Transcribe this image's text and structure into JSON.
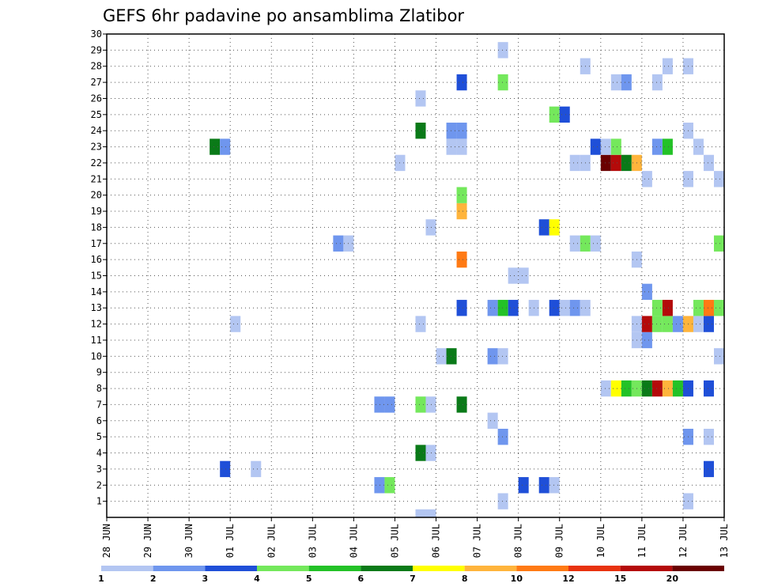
{
  "chart_data": {
    "type": "heatmap",
    "title": "GEFS 6hr padavine po ansamblima Zlatibor",
    "x_tick_labels": [
      "28 JUN",
      "29 JUN",
      "30 JUN",
      "01 JUL",
      "02 JUL",
      "03 JUL",
      "04 JUL",
      "05 JUL",
      "06 JUL",
      "07 JUL",
      "08 JUL",
      "09 JUL",
      "10 JUL",
      "11 JUL",
      "12 JUL",
      "13 JUL"
    ],
    "y_tick_labels": [
      "1",
      "2",
      "3",
      "4",
      "5",
      "6",
      "7",
      "8",
      "9",
      "10",
      "11",
      "12",
      "13",
      "14",
      "15",
      "16",
      "17",
      "18",
      "19",
      "20",
      "21",
      "22",
      "23",
      "24",
      "25",
      "26",
      "27",
      "28",
      "29",
      "30"
    ],
    "xlim": [
      0,
      60
    ],
    "ylim": [
      0,
      30
    ],
    "grid": true,
    "colorbar": {
      "labels": [
        "1",
        "2",
        "3",
        "4",
        "5",
        "6",
        "7",
        "8",
        "10",
        "12",
        "15",
        "20"
      ],
      "colors": [
        "#b3c6f2",
        "#6f96ee",
        "#1f4fd8",
        "#74e85c",
        "#23c227",
        "#0a7a18",
        "#ffff00",
        "#ffb43c",
        "#ff7a14",
        "#e8320f",
        "#b40a0a",
        "#6a0000"
      ]
    },
    "cells": [
      {
        "t": 56.5,
        "m": 1,
        "v": 1
      },
      {
        "t": 38.5,
        "m": 1,
        "v": 1
      },
      {
        "t": 40.5,
        "m": 2,
        "v": 3
      },
      {
        "t": 42.5,
        "m": 2,
        "v": 3
      },
      {
        "t": 43.5,
        "m": 2,
        "v": 1
      },
      {
        "t": 26.5,
        "m": 2,
        "v": 2
      },
      {
        "t": 27.5,
        "m": 2,
        "v": 4
      },
      {
        "t": 11.5,
        "m": 3,
        "v": 3
      },
      {
        "t": 14.5,
        "m": 3,
        "v": 1
      },
      {
        "t": 58.5,
        "m": 3,
        "v": 3
      },
      {
        "t": 30.5,
        "m": 4,
        "v": 6
      },
      {
        "t": 31.5,
        "m": 4,
        "v": 1
      },
      {
        "t": 38.5,
        "m": 5,
        "v": 2
      },
      {
        "t": 56.5,
        "m": 5,
        "v": 2
      },
      {
        "t": 58.5,
        "m": 5,
        "v": 1
      },
      {
        "t": 37.5,
        "m": 6,
        "v": 1
      },
      {
        "t": 26.5,
        "m": 7,
        "v": 2
      },
      {
        "t": 27.5,
        "m": 7,
        "v": 2
      },
      {
        "t": 30.5,
        "m": 7,
        "v": 4
      },
      {
        "t": 31.5,
        "m": 7,
        "v": 1
      },
      {
        "t": 34.5,
        "m": 7,
        "v": 6
      },
      {
        "t": 48.5,
        "m": 8,
        "v": 1
      },
      {
        "t": 49.5,
        "m": 8,
        "v": 7
      },
      {
        "t": 50.5,
        "m": 8,
        "v": 5
      },
      {
        "t": 51.5,
        "m": 8,
        "v": 4
      },
      {
        "t": 52.5,
        "m": 8,
        "v": 6
      },
      {
        "t": 53.5,
        "m": 8,
        "v": 11
      },
      {
        "t": 54.5,
        "m": 8,
        "v": 8
      },
      {
        "t": 55.5,
        "m": 8,
        "v": 5
      },
      {
        "t": 56.5,
        "m": 8,
        "v": 3
      },
      {
        "t": 58.5,
        "m": 8,
        "v": 3
      },
      {
        "t": 32.5,
        "m": 10,
        "v": 1
      },
      {
        "t": 33.5,
        "m": 10,
        "v": 6
      },
      {
        "t": 37.5,
        "m": 10,
        "v": 2
      },
      {
        "t": 38.5,
        "m": 10,
        "v": 1
      },
      {
        "t": 59.5,
        "m": 10,
        "v": 1
      },
      {
        "t": 51.5,
        "m": 11,
        "v": 1
      },
      {
        "t": 52.5,
        "m": 11,
        "v": 2
      },
      {
        "t": 12.5,
        "m": 12,
        "v": 1
      },
      {
        "t": 30.5,
        "m": 12,
        "v": 1
      },
      {
        "t": 51.5,
        "m": 12,
        "v": 1
      },
      {
        "t": 52.5,
        "m": 12,
        "v": 11
      },
      {
        "t": 53.5,
        "m": 12,
        "v": 4
      },
      {
        "t": 54.5,
        "m": 12,
        "v": 4
      },
      {
        "t": 55.5,
        "m": 12,
        "v": 2
      },
      {
        "t": 56.5,
        "m": 12,
        "v": 8
      },
      {
        "t": 57.5,
        "m": 12,
        "v": 1
      },
      {
        "t": 58.5,
        "m": 12,
        "v": 3
      },
      {
        "t": 34.5,
        "m": 13,
        "v": 3
      },
      {
        "t": 37.5,
        "m": 13,
        "v": 2
      },
      {
        "t": 38.5,
        "m": 13,
        "v": 5
      },
      {
        "t": 39.5,
        "m": 13,
        "v": 3
      },
      {
        "t": 41.5,
        "m": 13,
        "v": 1
      },
      {
        "t": 43.5,
        "m": 13,
        "v": 3
      },
      {
        "t": 44.5,
        "m": 13,
        "v": 1
      },
      {
        "t": 45.5,
        "m": 13,
        "v": 2
      },
      {
        "t": 46.5,
        "m": 13,
        "v": 1
      },
      {
        "t": 53.5,
        "m": 13,
        "v": 4
      },
      {
        "t": 54.5,
        "m": 13,
        "v": 11
      },
      {
        "t": 57.5,
        "m": 13,
        "v": 4
      },
      {
        "t": 58.5,
        "m": 13,
        "v": 9
      },
      {
        "t": 59.5,
        "m": 13,
        "v": 4
      },
      {
        "t": 52.5,
        "m": 14,
        "v": 2
      },
      {
        "t": 39.5,
        "m": 15,
        "v": 1
      },
      {
        "t": 40.5,
        "m": 15,
        "v": 1
      },
      {
        "t": 34.5,
        "m": 16,
        "v": 9
      },
      {
        "t": 51.5,
        "m": 16,
        "v": 1
      },
      {
        "t": 22.5,
        "m": 17,
        "v": 2
      },
      {
        "t": 23.5,
        "m": 17,
        "v": 1
      },
      {
        "t": 45.5,
        "m": 17,
        "v": 1
      },
      {
        "t": 46.5,
        "m": 17,
        "v": 4
      },
      {
        "t": 47.5,
        "m": 17,
        "v": 1
      },
      {
        "t": 59.5,
        "m": 17,
        "v": 4
      },
      {
        "t": 31.5,
        "m": 18,
        "v": 1
      },
      {
        "t": 42.5,
        "m": 18,
        "v": 3
      },
      {
        "t": 43.5,
        "m": 18,
        "v": 7
      },
      {
        "t": 34.5,
        "m": 19,
        "v": 8
      },
      {
        "t": 34.5,
        "m": 20,
        "v": 4
      },
      {
        "t": 52.5,
        "m": 21,
        "v": 1
      },
      {
        "t": 56.5,
        "m": 21,
        "v": 1
      },
      {
        "t": 59.5,
        "m": 21,
        "v": 1
      },
      {
        "t": 28.5,
        "m": 22,
        "v": 1
      },
      {
        "t": 45.5,
        "m": 22,
        "v": 1
      },
      {
        "t": 46.5,
        "m": 22,
        "v": 1
      },
      {
        "t": 48.5,
        "m": 22,
        "v": 12
      },
      {
        "t": 49.5,
        "m": 22,
        "v": 11
      },
      {
        "t": 50.5,
        "m": 22,
        "v": 6
      },
      {
        "t": 51.5,
        "m": 22,
        "v": 8
      },
      {
        "t": 58.5,
        "m": 22,
        "v": 1
      },
      {
        "t": 10.5,
        "m": 23,
        "v": 6
      },
      {
        "t": 11.5,
        "m": 23,
        "v": 2
      },
      {
        "t": 33.5,
        "m": 23,
        "v": 1
      },
      {
        "t": 34.5,
        "m": 23,
        "v": 1
      },
      {
        "t": 47.5,
        "m": 23,
        "v": 3
      },
      {
        "t": 48.5,
        "m": 23,
        "v": 1
      },
      {
        "t": 49.5,
        "m": 23,
        "v": 4
      },
      {
        "t": 53.5,
        "m": 23,
        "v": 2
      },
      {
        "t": 54.5,
        "m": 23,
        "v": 5
      },
      {
        "t": 57.5,
        "m": 23,
        "v": 1
      },
      {
        "t": 30.5,
        "m": 24,
        "v": 6
      },
      {
        "t": 33.5,
        "m": 24,
        "v": 2
      },
      {
        "t": 34.5,
        "m": 24,
        "v": 2
      },
      {
        "t": 56.5,
        "m": 24,
        "v": 1
      },
      {
        "t": 43.5,
        "m": 25,
        "v": 4
      },
      {
        "t": 44.5,
        "m": 25,
        "v": 3
      },
      {
        "t": 30.5,
        "m": 26,
        "v": 1
      },
      {
        "t": 34.5,
        "m": 27,
        "v": 3
      },
      {
        "t": 38.5,
        "m": 27,
        "v": 4
      },
      {
        "t": 49.5,
        "m": 27,
        "v": 1
      },
      {
        "t": 50.5,
        "m": 27,
        "v": 2
      },
      {
        "t": 53.5,
        "m": 27,
        "v": 1
      },
      {
        "t": 46.5,
        "m": 28,
        "v": 1
      },
      {
        "t": 54.5,
        "m": 28,
        "v": 1
      },
      {
        "t": 56.5,
        "m": 28,
        "v": 1
      },
      {
        "t": 38.5,
        "m": 29,
        "v": 1
      },
      {
        "t": 30.5,
        "m": 0,
        "v": 1
      },
      {
        "t": 31.5,
        "m": 0,
        "v": 1
      }
    ]
  }
}
